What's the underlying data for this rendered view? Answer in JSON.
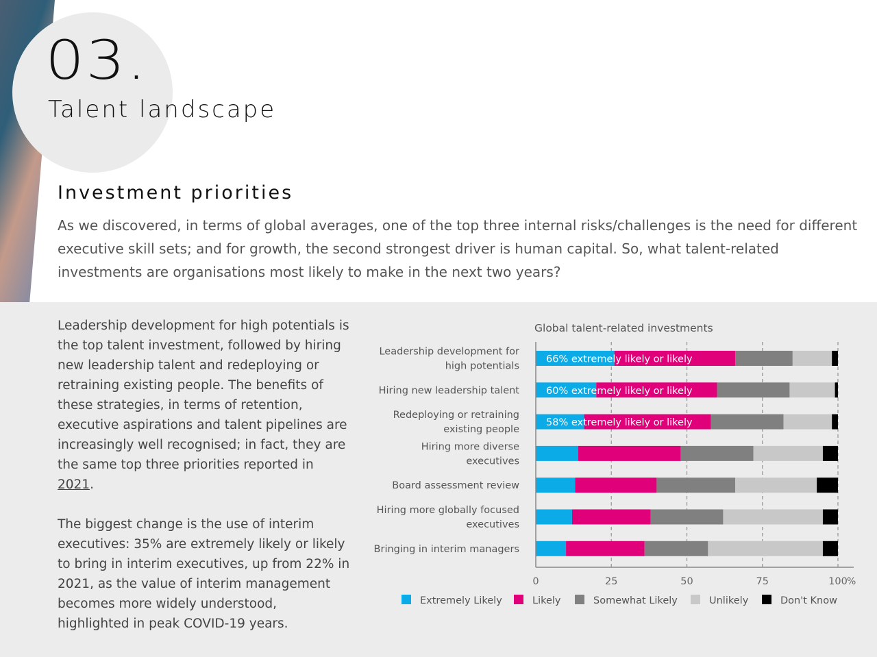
{
  "section": {
    "number": "03.",
    "title": "Talent landscape"
  },
  "subtitle": "Investment priorities",
  "intro": "As we discovered, in terms of global averages, one of the top three internal risks/challenges is the need for different executive skill sets; and for growth, the second strongest driver is human capital. So, what talent-related investments are organisations most likely to make in the next two years?",
  "body": {
    "p1_before": "Leadership development for high potentials is the top talent investment, followed by hiring new leadership talent and redeploying or retraining existing people. The benefits of these strategies, in terms of retention, executive aspirations and talent pipelines are increasingly well recognised; in fact, they are the same top three priorities reported in ",
    "p1_link": "2021",
    "p1_after": ".",
    "p2": "The biggest change is the use of interim executives: 35% are extremely likely or likely to bring in interim executives, up from 22% in 2021, as the value of interim management becomes more widely understood, highlighted in peak COVID-19 years."
  },
  "colors": {
    "extremely_likely": "#0aabe6",
    "likely": "#e0007a",
    "somewhat_likely": "#808080",
    "unlikely": "#c8c8c8",
    "dont_know": "#000000",
    "panel": "#ececec"
  },
  "chart_data": {
    "type": "bar",
    "orientation": "horizontal",
    "stacked": true,
    "title": "Global talent-related investments",
    "categories": [
      [
        "Leadership development for",
        "high potentials"
      ],
      [
        "Hiring new leadership talent"
      ],
      [
        "Redeploying or retraining",
        "existing people"
      ],
      [
        "Hiring more diverse",
        "executives"
      ],
      [
        "Board assessment review"
      ],
      [
        "Hiring more globally focused",
        "executives"
      ],
      [
        "Bringing in interim managers"
      ]
    ],
    "series": [
      {
        "name": "Extremely Likely",
        "color": "#0aabe6",
        "values": [
          26,
          20,
          16,
          14,
          13,
          12,
          10
        ]
      },
      {
        "name": "Likely",
        "color": "#e0007a",
        "values": [
          40,
          40,
          42,
          34,
          27,
          26,
          26
        ]
      },
      {
        "name": "Somewhat Likely",
        "color": "#808080",
        "values": [
          19,
          24,
          24,
          24,
          26,
          24,
          21
        ]
      },
      {
        "name": "Unlikely",
        "color": "#c8c8c8",
        "values": [
          13,
          15,
          16,
          23,
          27,
          33,
          38
        ]
      },
      {
        "name": "Don't Know",
        "color": "#000000",
        "values": [
          2,
          1,
          2,
          5,
          7,
          5,
          5
        ]
      }
    ],
    "bar_labels": [
      "66% extremely likely or likely",
      "60% extremely likely or likely",
      "58% extremely likely or likely",
      "",
      "",
      "",
      ""
    ],
    "xticks": [
      "0",
      "25",
      "50",
      "75",
      "100"
    ],
    "x_values": [
      0,
      25,
      50,
      75,
      100
    ],
    "xunit": "%",
    "xlim": [
      0,
      100
    ],
    "grid": "dashed vertical",
    "legend": "bottom"
  }
}
